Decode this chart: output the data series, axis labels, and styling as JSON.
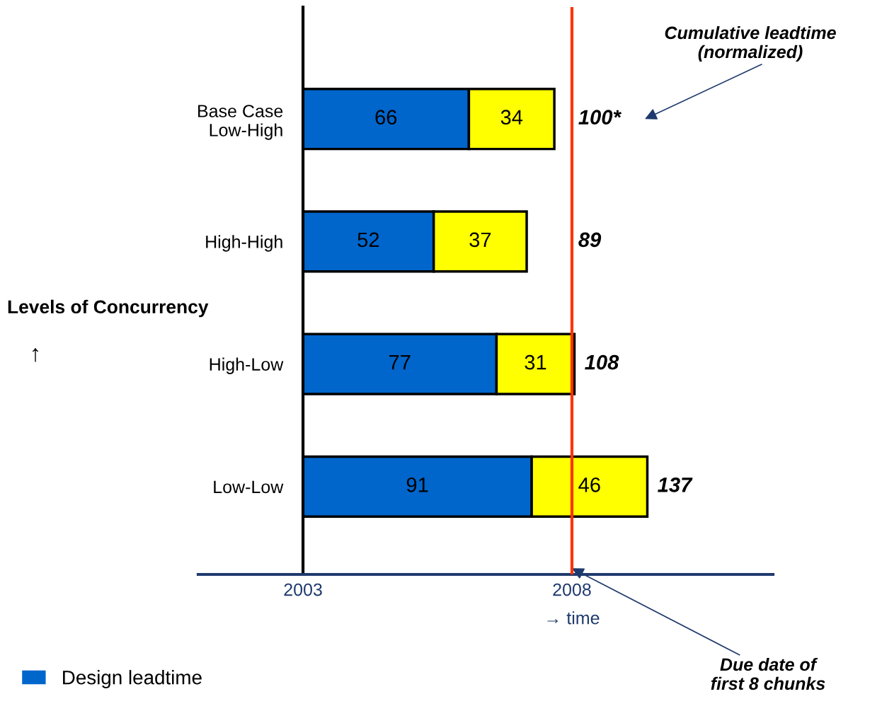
{
  "chart_data": {
    "type": "bar",
    "orientation": "horizontal",
    "stacked": true,
    "categories": [
      "Base Case\nLow-High",
      "High-High",
      "High-Low",
      "Low-Low"
    ],
    "series": [
      {
        "name": "Design leadtime",
        "color": "#0066cc",
        "values": [
          66,
          52,
          77,
          91
        ]
      },
      {
        "color": "#ffff00",
        "values": [
          34,
          37,
          31,
          46
        ]
      }
    ],
    "data_labels": true,
    "totals": [
      "100*",
      "89",
      "108",
      "137"
    ],
    "xlim": [
      -41.7,
      187
    ],
    "tick_labels": "y",
    "xlabel": "→ time",
    "ylabel": "Levels of Concurrency",
    "ref_lines": [
      {
        "axis": "x",
        "value": 107,
        "color": "#ff3300"
      }
    ],
    "legend": "bottom left",
    "annotations": [
      "2003",
      "2008",
      "Cumulative leadtime\n(normalized)",
      "Due date of\nfirst 8 chunks",
      "↑"
    ]
  }
}
